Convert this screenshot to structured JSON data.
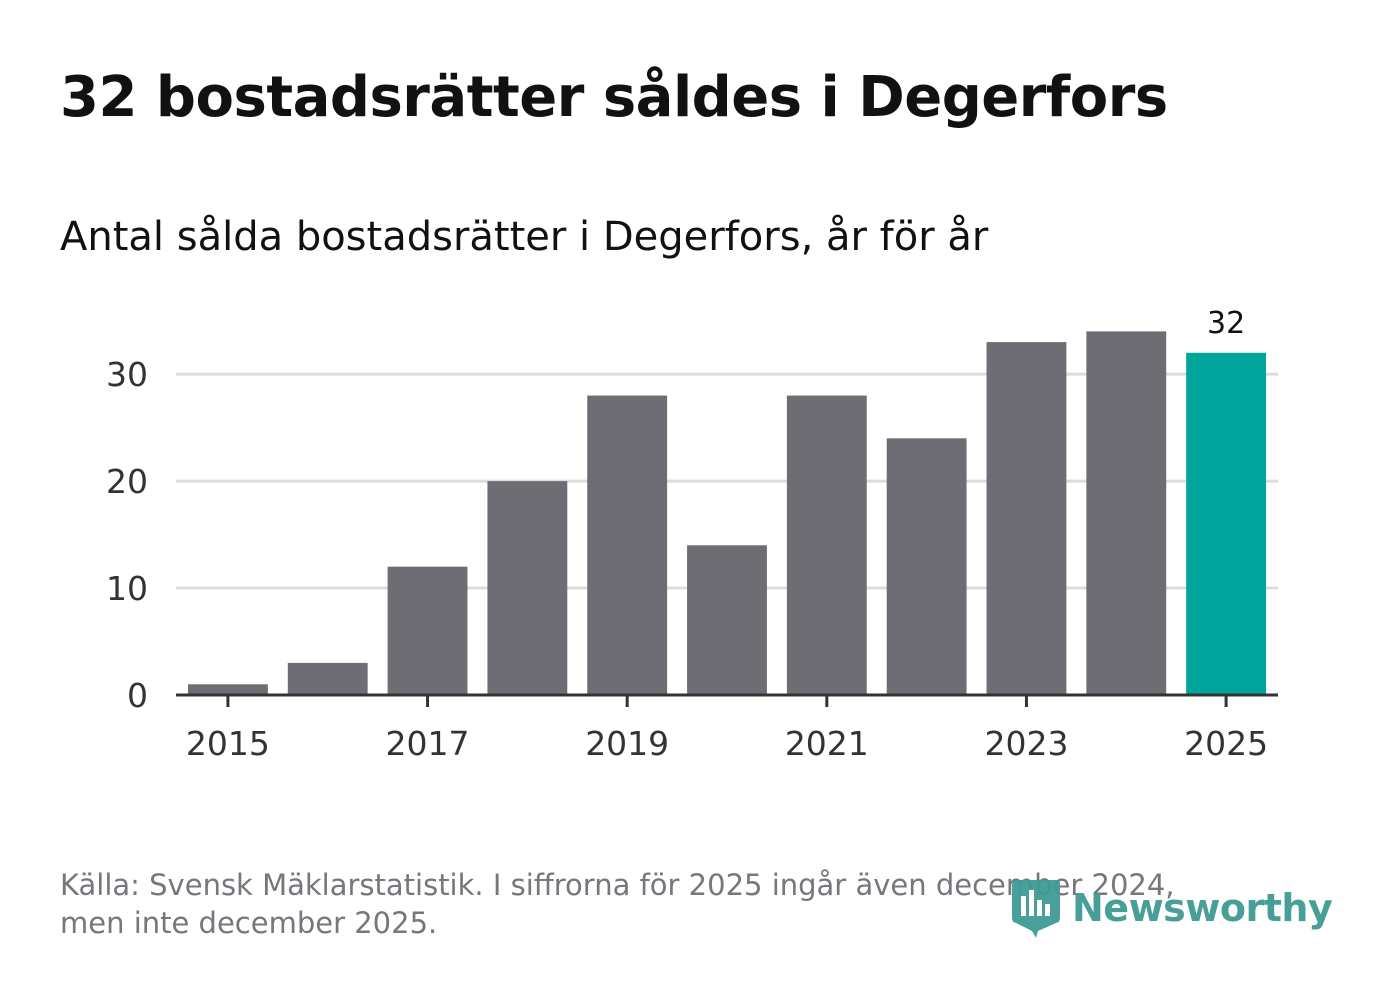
{
  "title": "32 bostadsrätter såldes i Degerfors",
  "subtitle": "Antal sålda bostadsrätter i Degerfors, år för år",
  "footer": {
    "line1": "Källa: Svensk Mäklarstatistik. I siffrorna för 2025 ingår även december 2024,",
    "line2": "men inte december 2025."
  },
  "logo": {
    "text": "Newsworthy",
    "icon": "newsworthy-logo-icon",
    "color": "#3f9a93"
  },
  "colors": {
    "bar": "#6e6d73",
    "highlight": "#00a59b",
    "grid": "#dcdcdc",
    "axis": "#333333"
  },
  "chart_data": {
    "type": "bar",
    "title": "Antal sålda bostadsrätter i Degerfors, år för år",
    "xlabel": "",
    "ylabel": "",
    "categories": [
      "2015",
      "2016",
      "2017",
      "2018",
      "2019",
      "2020",
      "2021",
      "2022",
      "2023",
      "2024",
      "2025"
    ],
    "values": [
      1,
      3,
      12,
      20,
      28,
      14,
      28,
      24,
      33,
      34,
      32
    ],
    "highlight_category": "2025",
    "highlight_label": "32",
    "x_tick_labels": [
      "2015",
      "2017",
      "2019",
      "2021",
      "2023",
      "2025"
    ],
    "y_ticks": [
      0,
      10,
      20,
      30
    ],
    "y_tick_labels": [
      "0",
      "10",
      "20",
      "30"
    ],
    "ylim": [
      0,
      36
    ],
    "grid": true
  }
}
